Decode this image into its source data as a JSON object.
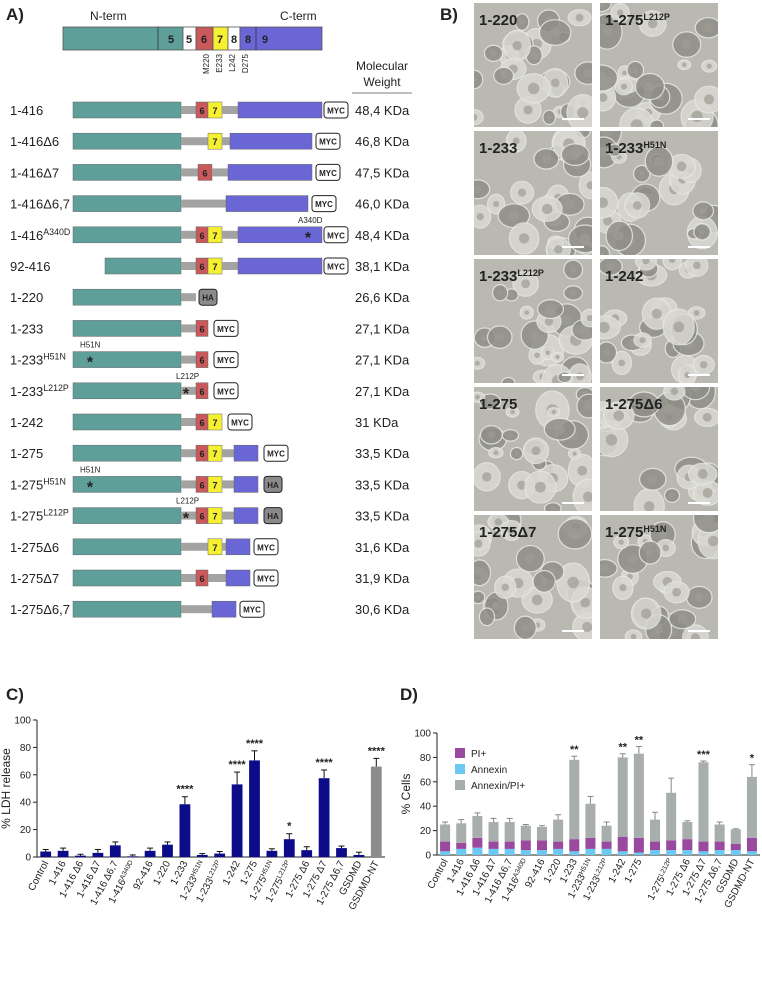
{
  "panel_labels": [
    "A)",
    "B)",
    "C)",
    "D)"
  ],
  "constructs": {
    "domain_map": {
      "n_term": "N-term",
      "c_term": "C-term",
      "numbers": [
        "5",
        "5",
        "6",
        "7",
        "8",
        "8",
        "9"
      ],
      "residues": [
        "M220",
        "E233",
        "L242",
        "D275"
      ]
    },
    "mw_header": [
      "Molecular",
      "Weight"
    ],
    "rows": [
      {
        "name": "1-416",
        "domains": [
          "6",
          "7"
        ],
        "tag": "MYC",
        "mw": "48,4 KDa"
      },
      {
        "name": "1-416Δ6",
        "domains": [
          "7"
        ],
        "tag": "MYC",
        "mw": "46,8 KDa"
      },
      {
        "name": "1-416Δ7",
        "domains": [
          "6"
        ],
        "tag": "MYC",
        "mw": "47,5 KDa"
      },
      {
        "name": "1-416Δ6,7",
        "domains": [],
        "tag": "MYC",
        "mw": "46,0 KDa"
      },
      {
        "name": "1-416",
        "sup": "A340D",
        "mutation": "A340D",
        "domains": [
          "6",
          "7"
        ],
        "tag": "MYC",
        "mw": "48,4 KDa"
      },
      {
        "name": "92-416",
        "domains": [
          "6",
          "7"
        ],
        "tag": "MYC",
        "mw": "38,1 KDa"
      },
      {
        "name": "1-220",
        "domains": [],
        "tag": "HA",
        "mw": "26,6 KDa"
      },
      {
        "name": "1-233",
        "domains": [
          "6"
        ],
        "tag": "MYC",
        "mw": "27,1 KDa"
      },
      {
        "name": "1-233",
        "sup": "H51N",
        "mutation": "H51N",
        "domains": [
          "6"
        ],
        "tag": "MYC",
        "mw": "27,1 KDa"
      },
      {
        "name": "1-233",
        "sup": "L212P",
        "mutation": "L212P",
        "domains": [
          "6"
        ],
        "tag": "MYC",
        "mw": "27,1 KDa"
      },
      {
        "name": "1-242",
        "domains": [
          "6",
          "7"
        ],
        "tag": "MYC",
        "mw": "31 KDa"
      },
      {
        "name": "1-275",
        "domains": [
          "6",
          "7"
        ],
        "tag": "MYC",
        "mw": "33,5 KDa"
      },
      {
        "name": "1-275",
        "sup": "H51N",
        "mutation": "H51N",
        "domains": [
          "6",
          "7"
        ],
        "tag": "HA",
        "mw": "33,5 KDa"
      },
      {
        "name": "1-275",
        "sup": "L212P",
        "mutation": "L212P",
        "domains": [
          "6",
          "7"
        ],
        "tag": "HA",
        "mw": "33,5 KDa"
      },
      {
        "name": "1-275Δ6",
        "domains": [
          "7"
        ],
        "tag": "MYC",
        "mw": "31,6 KDa"
      },
      {
        "name": "1-275Δ7",
        "domains": [
          "6"
        ],
        "tag": "MYC",
        "mw": "31,9 KDa"
      },
      {
        "name": "1-275Δ6,7",
        "domains": [],
        "tag": "MYC",
        "mw": "30,6 KDa"
      }
    ]
  },
  "micrographs": [
    {
      "name": "1-220"
    },
    {
      "name": "1-275",
      "sup": "L212P"
    },
    {
      "name": "1-233"
    },
    {
      "name": "1-233",
      "sup": "H51N"
    },
    {
      "name": "1-233",
      "sup": "L212P"
    },
    {
      "name": "1-242"
    },
    {
      "name": "1-275"
    },
    {
      "name": "1-275Δ6"
    },
    {
      "name": "1-275Δ7"
    },
    {
      "name": "1-275",
      "sup": "H51N"
    }
  ],
  "chart_data": [
    {
      "type": "bar",
      "y_label": "% LDH release",
      "categories": [
        "Control",
        "1-416",
        "1-416 Δ6",
        "1-416 Δ7",
        "1-416 Δ6,7",
        "1-416",
        "92-416",
        "1-220",
        "1-233",
        "1-233",
        "1-233",
        "1-242",
        "1-275",
        "1-275",
        "1-275",
        "1-275 Δ6",
        "1-275 Δ7",
        "1-275 Δ6,7",
        "GSDMD",
        "GSDMD-NT"
      ],
      "category_superscripts": [
        null,
        null,
        null,
        null,
        null,
        "A340D",
        null,
        null,
        null,
        "H51N",
        "L212P",
        null,
        null,
        "H51N",
        "L212P",
        null,
        null,
        null,
        null,
        null
      ],
      "values": [
        4,
        4.5,
        1,
        3,
        8.5,
        0.5,
        4.5,
        9,
        38.5,
        1.5,
        2.5,
        53,
        70.5,
        4.5,
        13,
        5,
        57.5,
        6.5,
        1.5,
        66
      ],
      "errors": [
        1.5,
        2,
        1,
        2.5,
        2.5,
        1,
        2,
        2,
        5.5,
        1,
        1.5,
        9,
        7,
        1.5,
        4,
        2.5,
        6,
        1.5,
        2,
        6
      ],
      "colors": [
        "#0c0c8a",
        "#0c0c8a",
        "#0c0c8a",
        "#0c0c8a",
        "#0c0c8a",
        "#0c0c8a",
        "#0c0c8a",
        "#0c0c8a",
        "#0c0c8a",
        "#0c0c8a",
        "#0c0c8a",
        "#0c0c8a",
        "#0c0c8a",
        "#0c0c8a",
        "#0c0c8a",
        "#0c0c8a",
        "#0c0c8a",
        "#0c0c8a",
        "#0c0c8a",
        "#8c8c8c"
      ],
      "significance": [
        null,
        null,
        null,
        null,
        null,
        null,
        null,
        null,
        "****",
        null,
        null,
        "****",
        "****",
        null,
        "*",
        null,
        "****",
        null,
        null,
        "****"
      ],
      "ylim": [
        0,
        100
      ],
      "yticks": [
        0,
        20,
        40,
        60,
        80,
        100
      ],
      "grid": false
    },
    {
      "type": "stacked_bar",
      "y_label": "% Cells",
      "categories": [
        "Control",
        "1-416",
        "1-416 Δ6",
        "1-416 Δ7",
        "1-416 Δ6,7",
        "1-416",
        "92-416",
        "1-220",
        "1-233",
        "1-233",
        "1-233",
        "1-242",
        "1-275",
        null,
        "1-275",
        "1-275 Δ6",
        "1-275 Δ7",
        "1-275 Δ6,7",
        "GSDMD",
        "GSDMD-NT"
      ],
      "category_superscripts": [
        null,
        null,
        null,
        null,
        null,
        "A340D",
        null,
        null,
        null,
        "H51N",
        "L212P",
        null,
        null,
        null,
        "L212P",
        null,
        null,
        null,
        null,
        null
      ],
      "series": [
        {
          "name": "PI+",
          "color": "#9a4a9e",
          "values": [
            8,
            5,
            8,
            6,
            6,
            8,
            8,
            6,
            10,
            9,
            6,
            12,
            12,
            7,
            8,
            9,
            8,
            7,
            5,
            11
          ]
        },
        {
          "name": "Annexin",
          "color": "#6cc9f2",
          "values": [
            3,
            5,
            6,
            5,
            5,
            4,
            4,
            5,
            3,
            5,
            5,
            3,
            2,
            4,
            4,
            4,
            3,
            4,
            4,
            3
          ]
        },
        {
          "name": "Annexin/PI+",
          "color": "#a8adad",
          "values": [
            14,
            16,
            18,
            16,
            16,
            12,
            11,
            18,
            65,
            28,
            13,
            65,
            69,
            18,
            39,
            14,
            65,
            14,
            12,
            50
          ],
          "errors": [
            2,
            3,
            2.5,
            3,
            3,
            1,
            1,
            4,
            3,
            6,
            3,
            3,
            6,
            6,
            12,
            1,
            1,
            2,
            0.5,
            10
          ]
        }
      ],
      "significance": [
        null,
        null,
        null,
        null,
        null,
        null,
        null,
        null,
        "**",
        null,
        null,
        "**",
        "**",
        null,
        null,
        null,
        "***",
        null,
        null,
        "*"
      ],
      "ylim": [
        0,
        100
      ],
      "yticks": [
        0,
        20,
        40,
        60,
        80,
        100
      ],
      "legend": "upper left",
      "grid": false
    }
  ]
}
